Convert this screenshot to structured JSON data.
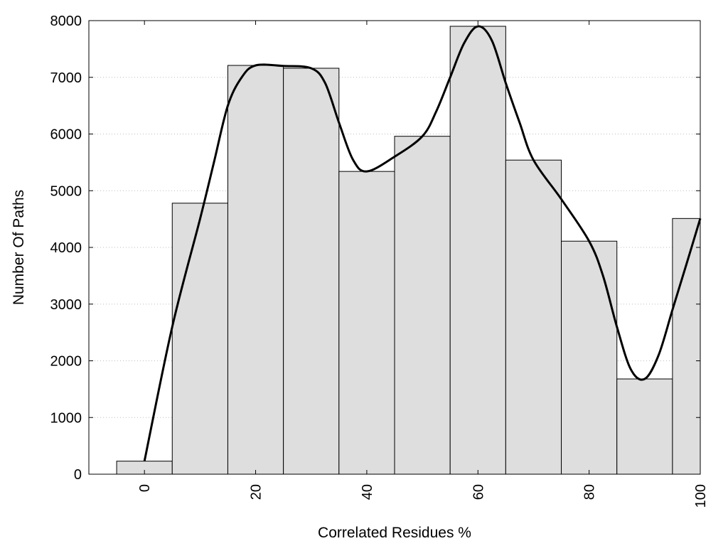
{
  "chart_data": {
    "type": "bar",
    "title": "",
    "xlabel": "Correlated Residues %",
    "ylabel": "Number Of Paths",
    "x": [
      0,
      10,
      20,
      30,
      40,
      50,
      60,
      70,
      80,
      90,
      100
    ],
    "values": [
      230,
      4780,
      7210,
      7160,
      5340,
      5960,
      7900,
      5540,
      4110,
      1680,
      4510
    ],
    "bin_width": 10,
    "xlim": [
      -10,
      100
    ],
    "ylim": [
      0,
      8000
    ],
    "x_ticks": [
      0,
      20,
      40,
      60,
      80,
      100
    ],
    "y_ticks": [
      0,
      1000,
      2000,
      3000,
      4000,
      5000,
      6000,
      7000,
      8000
    ],
    "grid": "horizontal dotted",
    "curve": {
      "type": "smoothed line",
      "points": [
        [
          0,
          230
        ],
        [
          5,
          2600
        ],
        [
          10,
          4500
        ],
        [
          12.5,
          5500
        ],
        [
          15,
          6500
        ],
        [
          17.5,
          7000
        ],
        [
          20,
          7210
        ],
        [
          25,
          7200
        ],
        [
          30,
          7160
        ],
        [
          32.5,
          6900
        ],
        [
          35,
          6200
        ],
        [
          37.5,
          5550
        ],
        [
          40,
          5340
        ],
        [
          45,
          5600
        ],
        [
          50,
          5960
        ],
        [
          52.5,
          6400
        ],
        [
          55,
          7000
        ],
        [
          57.5,
          7600
        ],
        [
          60,
          7900
        ],
        [
          62.5,
          7650
        ],
        [
          65,
          6900
        ],
        [
          67.5,
          6200
        ],
        [
          70,
          5540
        ],
        [
          75,
          4850
        ],
        [
          80,
          4110
        ],
        [
          82.5,
          3500
        ],
        [
          85,
          2600
        ],
        [
          87.5,
          1850
        ],
        [
          90,
          1680
        ],
        [
          92.5,
          2100
        ],
        [
          95,
          2900
        ],
        [
          97.5,
          3700
        ],
        [
          100,
          4510
        ]
      ]
    },
    "colors": {
      "bar_fill": "#dedede",
      "bar_stroke": "#000000",
      "curve": "#000000",
      "grid": "#bdbdbd"
    }
  }
}
